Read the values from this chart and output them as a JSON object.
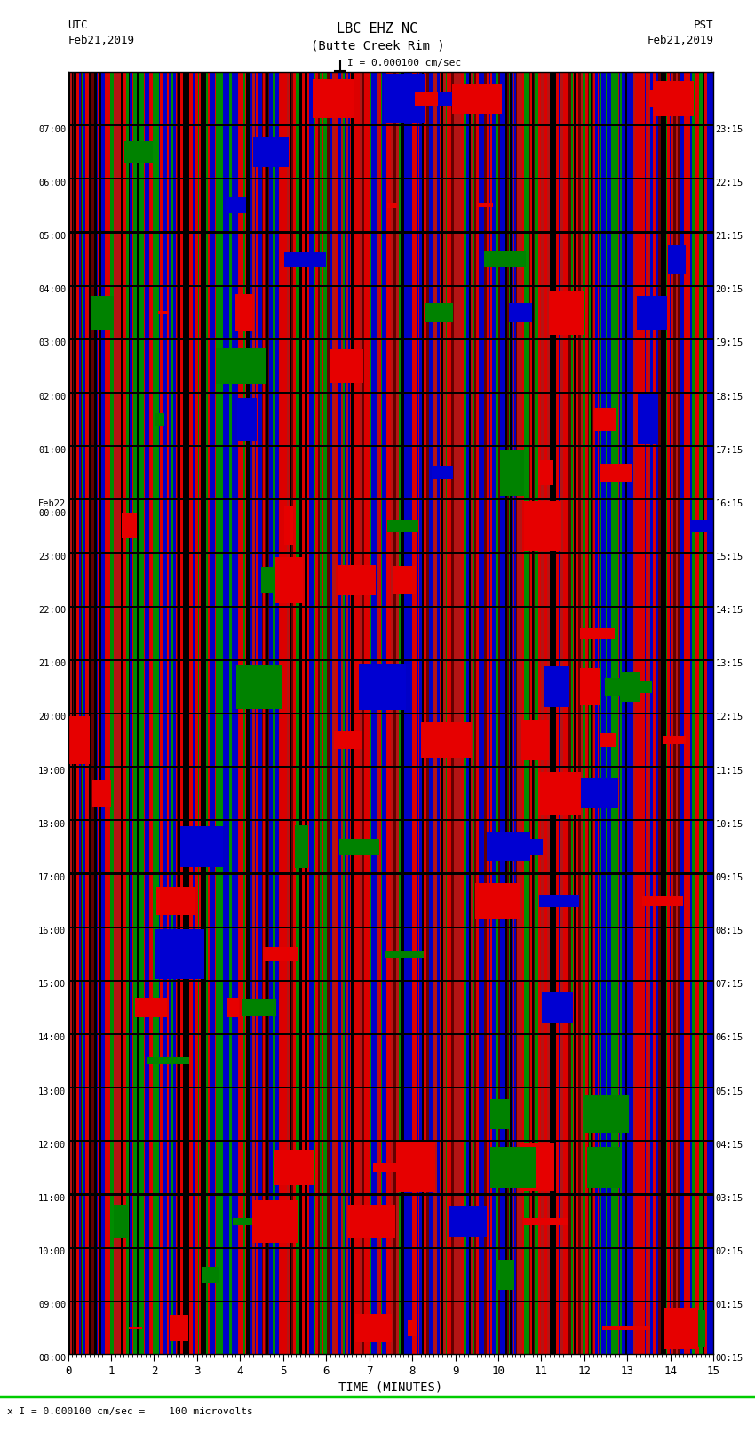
{
  "title_line1": "LBC EHZ NC",
  "title_line2": "(Butte Creek Rim )",
  "scale_label": "I = 0.000100 cm/sec",
  "utc_label": "UTC\nFeb21,2019",
  "pst_label": "PST\nFeb21,2019",
  "xlabel": "TIME (MINUTES)",
  "bottom_label": "x I = 0.000100 cm/sec =    100 microvolts",
  "left_times": [
    "08:00",
    "09:00",
    "10:00",
    "11:00",
    "12:00",
    "13:00",
    "14:00",
    "15:00",
    "16:00",
    "17:00",
    "18:00",
    "19:00",
    "20:00",
    "21:00",
    "22:00",
    "23:00",
    "Feb22\n00:00",
    "01:00",
    "02:00",
    "03:00",
    "04:00",
    "05:00",
    "06:00",
    "07:00"
  ],
  "right_times": [
    "00:15",
    "01:15",
    "02:15",
    "03:15",
    "04:15",
    "05:15",
    "06:15",
    "07:15",
    "08:15",
    "09:15",
    "10:15",
    "11:15",
    "12:15",
    "13:15",
    "14:15",
    "15:15",
    "16:15",
    "17:15",
    "18:15",
    "19:15",
    "20:15",
    "21:15",
    "22:15",
    "23:15"
  ],
  "xmin": 0,
  "xmax": 15,
  "num_rows": 24,
  "background": "#ffffff",
  "green_line_color": "#00cc00"
}
